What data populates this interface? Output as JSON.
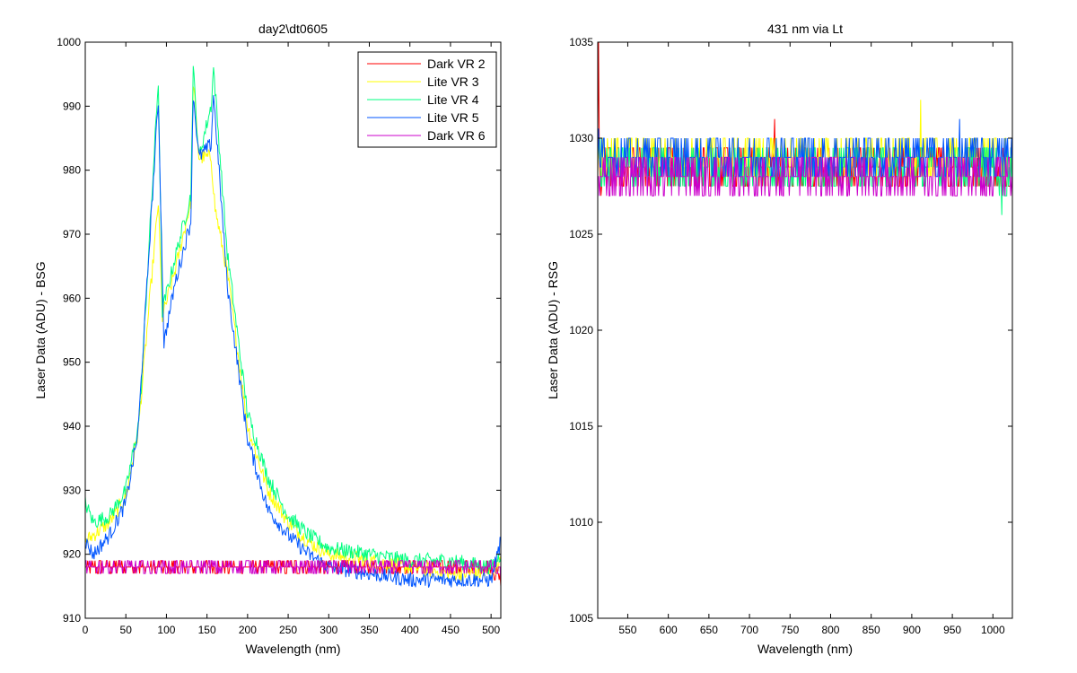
{
  "figure": {
    "background": "#ffffff"
  },
  "chart_data": [
    {
      "type": "line",
      "title": "day2\\dt0605",
      "xlabel": "Wavelength (nm)",
      "ylabel": "Laser Data (ADU) - BSG",
      "xlim": [
        0,
        512
      ],
      "ylim": [
        910,
        1000
      ],
      "xticks": [
        0,
        50,
        100,
        150,
        200,
        250,
        300,
        350,
        400,
        450,
        500
      ],
      "yticks": [
        910,
        920,
        930,
        940,
        950,
        960,
        970,
        980,
        990,
        1000
      ],
      "grid": false,
      "legend": "top-right",
      "series": [
        {
          "name": "Dark VR 2",
          "color": "#ff0000",
          "x": [
            0,
            50,
            100,
            150,
            200,
            250,
            300,
            350,
            400,
            450,
            500,
            512
          ],
          "y": [
            918,
            918,
            918,
            918,
            918,
            918,
            918,
            918,
            918,
            918,
            918,
            916
          ]
        },
        {
          "name": "Lite VR 3",
          "color": "#ffff00",
          "x": [
            0,
            10,
            30,
            50,
            65,
            90,
            95,
            110,
            130,
            133,
            140,
            155,
            160,
            175,
            200,
            225,
            250,
            275,
            300,
            350,
            400,
            450,
            500,
            512
          ],
          "y": [
            922,
            923,
            925,
            929,
            939,
            975,
            957,
            964,
            975,
            994,
            982,
            982,
            974,
            964,
            940,
            930,
            925,
            922,
            920,
            919,
            918,
            917,
            917,
            919
          ]
        },
        {
          "name": "Lite VR 4",
          "color": "#00ff80",
          "x": [
            0,
            10,
            30,
            50,
            65,
            68,
            90,
            95,
            110,
            130,
            133,
            140,
            155,
            158,
            175,
            200,
            225,
            250,
            275,
            300,
            350,
            400,
            450,
            500,
            512
          ],
          "y": [
            928,
            925,
            926,
            930,
            940,
            944,
            994,
            958,
            966,
            976,
            996,
            982,
            990,
            996,
            967,
            942,
            932,
            926,
            923,
            921,
            920,
            919,
            919,
            918,
            920
          ]
        },
        {
          "name": "Lite VR 5",
          "color": "#0055ff",
          "x": [
            0,
            10,
            30,
            50,
            65,
            90,
            97,
            110,
            130,
            133,
            140,
            155,
            158,
            175,
            200,
            225,
            250,
            275,
            300,
            350,
            400,
            450,
            500,
            512
          ],
          "y": [
            922,
            920,
            923,
            928,
            939,
            991,
            953,
            962,
            972,
            992,
            982,
            984,
            992,
            962,
            938,
            927,
            923,
            920,
            918,
            917,
            916,
            916,
            916,
            922
          ]
        },
        {
          "name": "Dark VR 6",
          "color": "#cc00cc",
          "x": [
            0,
            50,
            100,
            150,
            200,
            250,
            300,
            350,
            400,
            450,
            500,
            512
          ],
          "y": [
            918,
            918,
            918,
            918,
            918,
            918,
            918,
            918,
            918,
            918,
            918,
            917
          ]
        }
      ]
    },
    {
      "type": "line",
      "title": "431 nm via Lt",
      "xlabel": "Wavelength (nm)",
      "ylabel": "Laser Data (ADU) - RSG",
      "xlim": [
        513,
        1024
      ],
      "ylim": [
        1005,
        1035
      ],
      "xticks": [
        550,
        600,
        650,
        700,
        750,
        800,
        850,
        900,
        950,
        1000
      ],
      "yticks": [
        1005,
        1010,
        1015,
        1020,
        1025,
        1030,
        1035
      ],
      "grid": false,
      "series": [
        {
          "color": "#ff0000",
          "x": [
            513,
            514,
            515,
            516,
            520,
            600,
            700,
            730,
            731,
            732,
            800,
            900,
            1000,
            1024
          ],
          "y": [
            1029,
            1034,
            1029,
            1028,
            1028.5,
            1028.5,
            1028.5,
            1028.5,
            1031,
            1028.5,
            1028.5,
            1028.5,
            1028.5,
            1028.5
          ]
        },
        {
          "color": "#ffff00",
          "x": [
            513,
            520,
            600,
            700,
            800,
            900,
            910,
            911,
            912,
            1000,
            1024
          ],
          "y": [
            1029,
            1029,
            1029,
            1029,
            1029,
            1029,
            1029,
            1031,
            1029,
            1029,
            1029
          ]
        },
        {
          "color": "#00ff80",
          "x": [
            513,
            520,
            600,
            700,
            800,
            900,
            1000,
            1010,
            1011,
            1012,
            1024
          ],
          "y": [
            1029,
            1028.5,
            1028.5,
            1028.5,
            1028.5,
            1028.5,
            1028.5,
            1028,
            1026,
            1028,
            1028.5
          ]
        },
        {
          "color": "#0055ff",
          "x": [
            513,
            514,
            515,
            516,
            520,
            600,
            700,
            800,
            900,
            958,
            959,
            960,
            1000,
            1024
          ],
          "y": [
            1029,
            1031.5,
            1029,
            1028.5,
            1029,
            1029,
            1029,
            1029,
            1029,
            1029,
            1031,
            1029,
            1029,
            1029
          ]
        },
        {
          "color": "#cc00cc",
          "x": [
            513,
            520,
            600,
            700,
            800,
            900,
            1000,
            1024
          ],
          "y": [
            1028,
            1028,
            1028,
            1028,
            1028,
            1028,
            1028,
            1028
          ]
        }
      ]
    }
  ]
}
